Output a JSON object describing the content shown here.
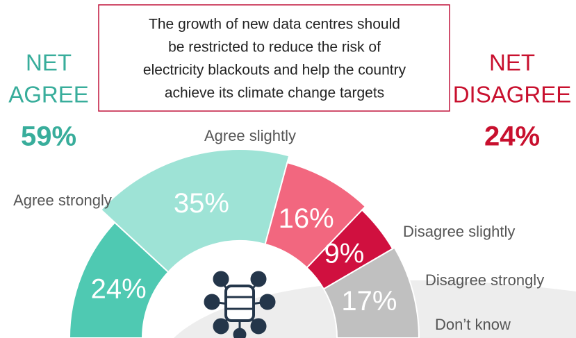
{
  "chart_data": {
    "type": "pie",
    "title": [
      "The growth of new data centres should",
      "be restricted to reduce the risk of",
      "electricity blackouts and help the country",
      "achieve its climate change targets"
    ],
    "categories": [
      "Agree strongly",
      "Agree slightly",
      "Disagree slightly",
      "Disagree strongly",
      "Don’t know"
    ],
    "values": [
      24,
      35,
      16,
      9,
      17
    ],
    "value_labels": [
      "24%",
      "35%",
      "16%",
      "9%",
      "17%"
    ],
    "colors": [
      "#4fc9b2",
      "#9ee3d6",
      "#f2677f",
      "#d0103f",
      "#c0c0c0"
    ],
    "net": [
      {
        "label": [
          "NET",
          "AGREE"
        ],
        "value": 59,
        "value_label": "59%",
        "color": "#38ad9b"
      },
      {
        "label": [
          "NET",
          "DISAGREE"
        ],
        "value": 24,
        "value_label": "24%",
        "color": "#c8102e"
      }
    ]
  }
}
